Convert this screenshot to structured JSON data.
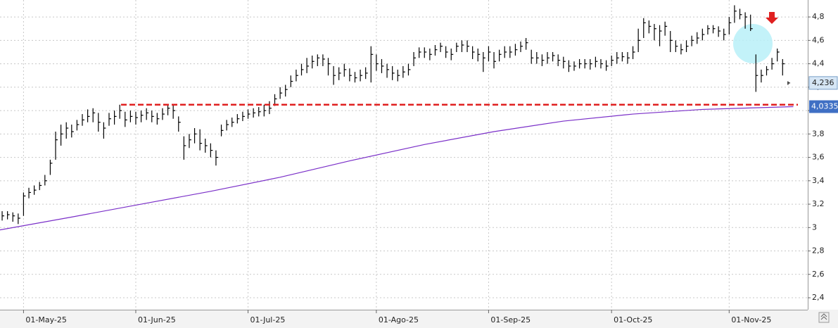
{
  "chart_data": {
    "type": "ohlc",
    "xlim": [
      -0.4,
      150.7
    ],
    "ylim": [
      2.298,
      4.945
    ],
    "grid": true,
    "xticks": [
      {
        "value": 4,
        "label": "01-May-25"
      },
      {
        "value": 25,
        "label": "01-Jun-25"
      },
      {
        "value": 46,
        "label": "01-Jul-25"
      },
      {
        "value": 70,
        "label": "01-Ago-25"
      },
      {
        "value": 91,
        "label": "01-Sep-25"
      },
      {
        "value": 114,
        "label": "01-Oct-25"
      },
      {
        "value": 136,
        "label": "01-Nov-25"
      }
    ],
    "yticks": [
      {
        "value": 2.4,
        "label": "2,4"
      },
      {
        "value": 2.6,
        "label": "2,6"
      },
      {
        "value": 2.8,
        "label": "2,8"
      },
      3,
      {
        "value": 3.2,
        "label": "3,2"
      },
      {
        "value": 3.4,
        "label": "3,4"
      },
      {
        "value": 3.6,
        "label": "3,6"
      },
      {
        "value": 3.8,
        "label": "3,8"
      },
      4,
      {
        "value": 4.2,
        "label": "4,2"
      },
      {
        "value": 4.4,
        "label": "4,4"
      },
      {
        "value": 4.6,
        "label": "4,6"
      },
      {
        "value": 4.8,
        "label": "4,8"
      }
    ],
    "price": {
      "color": "#000000",
      "high": [
        3.14,
        3.14,
        3.13,
        3.12,
        3.3,
        3.34,
        3.36,
        3.39,
        3.45,
        3.58,
        3.82,
        3.88,
        3.9,
        3.88,
        3.92,
        3.97,
        4.01,
        4.02,
        3.98,
        3.9,
        3.98,
        4.0,
        4.05,
        3.99,
        4.0,
        3.99,
        4.0,
        4.02,
        4.0,
        3.98,
        4.02,
        4.05,
        4.05,
        3.95,
        3.78,
        3.8,
        3.85,
        3.84,
        3.76,
        3.72,
        3.66,
        3.88,
        3.92,
        3.94,
        3.97,
        3.99,
        4.01,
        4.02,
        4.03,
        4.05,
        4.08,
        4.14,
        4.2,
        4.22,
        4.3,
        4.35,
        4.4,
        4.45,
        4.47,
        4.48,
        4.48,
        4.45,
        4.38,
        4.37,
        4.4,
        4.36,
        4.33,
        4.35,
        4.37,
        4.55,
        4.48,
        4.44,
        4.4,
        4.38,
        4.35,
        4.38,
        4.4,
        4.5,
        4.54,
        4.54,
        4.53,
        4.56,
        4.58,
        4.55,
        4.53,
        4.58,
        4.6,
        4.6,
        4.55,
        4.53,
        4.5,
        4.55,
        4.5,
        4.52,
        4.55,
        4.55,
        4.57,
        4.59,
        4.62,
        4.52,
        4.5,
        4.48,
        4.5,
        4.5,
        4.48,
        4.46,
        4.43,
        4.42,
        4.44,
        4.44,
        4.44,
        4.46,
        4.44,
        4.43,
        4.47,
        4.5,
        4.5,
        4.5,
        4.55,
        4.7,
        4.79,
        4.77,
        4.74,
        4.73,
        4.76,
        4.68,
        4.6,
        4.57,
        4.6,
        4.64,
        4.67,
        4.7,
        4.73,
        4.73,
        4.72,
        4.7,
        4.8,
        4.9,
        4.87,
        4.84,
        4.82,
        4.48,
        4.35,
        4.38,
        4.45,
        4.53,
        4.44,
        4.25
      ],
      "low": [
        3.06,
        3.07,
        3.05,
        3.03,
        3.1,
        3.25,
        3.28,
        3.32,
        3.36,
        3.45,
        3.58,
        3.7,
        3.76,
        3.77,
        3.83,
        3.87,
        3.9,
        3.9,
        3.82,
        3.76,
        3.87,
        3.88,
        3.93,
        3.86,
        3.9,
        3.88,
        3.9,
        3.92,
        3.9,
        3.88,
        3.92,
        3.96,
        3.93,
        3.82,
        3.58,
        3.68,
        3.72,
        3.66,
        3.64,
        3.6,
        3.53,
        3.78,
        3.83,
        3.86,
        3.89,
        3.91,
        3.93,
        3.94,
        3.95,
        3.95,
        3.97,
        4.04,
        4.1,
        4.12,
        4.2,
        4.25,
        4.3,
        4.32,
        4.36,
        4.38,
        4.38,
        4.3,
        4.22,
        4.26,
        4.29,
        4.25,
        4.24,
        4.25,
        4.27,
        4.24,
        4.34,
        4.32,
        4.28,
        4.26,
        4.25,
        4.28,
        4.3,
        4.38,
        4.45,
        4.45,
        4.43,
        4.47,
        4.5,
        4.45,
        4.43,
        4.5,
        4.5,
        4.5,
        4.44,
        4.42,
        4.33,
        4.42,
        4.36,
        4.42,
        4.45,
        4.45,
        4.47,
        4.5,
        4.52,
        4.4,
        4.4,
        4.38,
        4.4,
        4.42,
        4.38,
        4.36,
        4.33,
        4.34,
        4.36,
        4.36,
        4.35,
        4.37,
        4.36,
        4.34,
        4.38,
        4.4,
        4.42,
        4.4,
        4.44,
        4.5,
        4.62,
        4.66,
        4.6,
        4.55,
        4.64,
        4.5,
        4.5,
        4.48,
        4.5,
        4.55,
        4.57,
        4.6,
        4.65,
        4.66,
        4.63,
        4.6,
        4.65,
        4.75,
        4.78,
        4.7,
        4.68,
        4.16,
        4.24,
        4.3,
        4.35,
        4.42,
        4.3,
        4.22
      ],
      "close": [
        3.1,
        3.11,
        3.1,
        3.08,
        3.27,
        3.3,
        3.32,
        3.36,
        3.4,
        3.55,
        3.75,
        3.8,
        3.85,
        3.82,
        3.88,
        3.92,
        3.95,
        3.98,
        3.9,
        3.85,
        3.93,
        3.95,
        4.0,
        3.92,
        3.95,
        3.94,
        3.96,
        3.98,
        3.95,
        3.93,
        3.97,
        4.02,
        4.0,
        3.9,
        3.7,
        3.75,
        3.8,
        3.72,
        3.7,
        3.66,
        3.6,
        3.83,
        3.88,
        3.9,
        3.93,
        3.95,
        3.97,
        3.98,
        3.99,
        4.0,
        4.02,
        4.1,
        4.15,
        4.18,
        4.25,
        4.3,
        4.35,
        4.38,
        4.42,
        4.45,
        4.44,
        4.4,
        4.3,
        4.32,
        4.35,
        4.3,
        4.28,
        4.3,
        4.32,
        4.48,
        4.4,
        4.38,
        4.35,
        4.32,
        4.3,
        4.33,
        4.35,
        4.45,
        4.5,
        4.5,
        4.48,
        4.52,
        4.55,
        4.5,
        4.48,
        4.55,
        4.56,
        4.55,
        4.5,
        4.48,
        4.45,
        4.5,
        4.42,
        4.48,
        4.5,
        4.5,
        4.52,
        4.55,
        4.58,
        4.45,
        4.45,
        4.43,
        4.45,
        4.47,
        4.43,
        4.42,
        4.38,
        4.38,
        4.4,
        4.4,
        4.4,
        4.42,
        4.4,
        4.38,
        4.43,
        4.45,
        4.46,
        4.45,
        4.5,
        4.6,
        4.75,
        4.72,
        4.7,
        4.68,
        4.72,
        4.6,
        4.55,
        4.52,
        4.55,
        4.6,
        4.62,
        4.65,
        4.7,
        4.7,
        4.68,
        4.65,
        4.75,
        4.85,
        4.82,
        4.8,
        4.7,
        4.3,
        4.3,
        4.35,
        4.4,
        4.5,
        4.4,
        4.236
      ],
      "last_label": "4,236"
    },
    "average": {
      "color": "#7a2fc8",
      "x": [
        -0.4,
        13,
        26,
        39,
        52,
        65,
        79,
        92,
        105,
        118,
        131,
        148
      ],
      "values": [
        2.98,
        3.09,
        3.2,
        3.31,
        3.43,
        3.57,
        3.71,
        3.82,
        3.91,
        3.97,
        4.01,
        4.0335
      ],
      "last_label": "4,0335"
    },
    "support": {
      "value": 4.05,
      "color": "#e02020"
    }
  }
}
